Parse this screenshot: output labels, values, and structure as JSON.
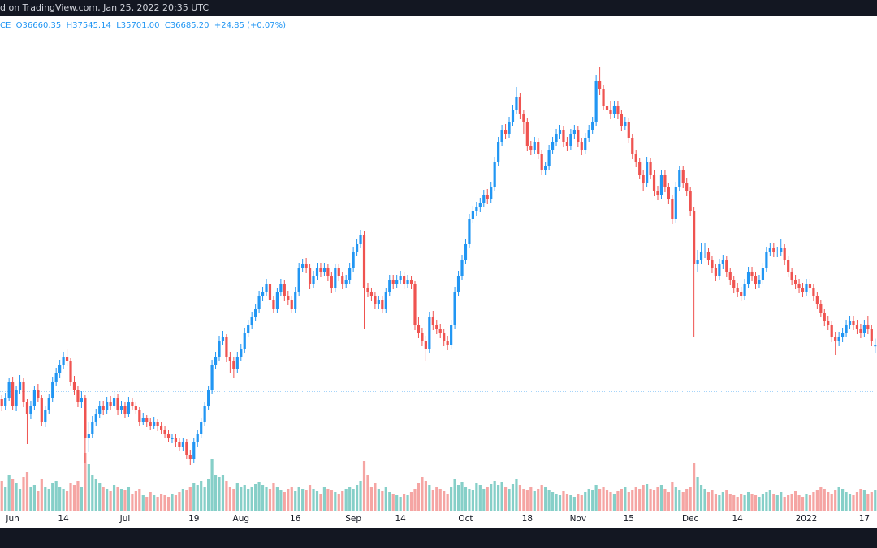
{
  "header": {
    "text": "d on TradingView.com, Jan 25, 2022 20:35 UTC"
  },
  "chart_data": {
    "type": "candlestick",
    "legend": "CE  O36660.35  H37545.14  L35701.00  C36685.20  +24.85 (+0.07%)",
    "up_color": "#2196f3",
    "down_color": "#ef5350",
    "volume_up_color": "#86cfc8",
    "volume_down_color": "#f5a5a3",
    "price_line": 31000,
    "price_line_color": "#2196f3",
    "ylim": [
      14200,
      77200
    ],
    "volume_lim": [
      0,
      100
    ],
    "categories": [
      null,
      null,
      null,
      "Jun",
      null,
      null,
      null,
      null,
      null,
      null,
      null,
      null,
      null,
      null,
      null,
      null,
      null,
      "14",
      null,
      null,
      null,
      null,
      null,
      null,
      null,
      null,
      null,
      null,
      null,
      null,
      null,
      null,
      null,
      null,
      "Jul",
      null,
      null,
      null,
      null,
      null,
      null,
      null,
      null,
      null,
      null,
      null,
      null,
      null,
      null,
      null,
      null,
      null,
      null,
      "19",
      null,
      null,
      null,
      null,
      null,
      null,
      null,
      null,
      null,
      null,
      null,
      null,
      "Aug",
      null,
      null,
      null,
      null,
      null,
      null,
      null,
      null,
      null,
      null,
      null,
      null,
      null,
      null,
      "16",
      null,
      null,
      null,
      null,
      null,
      null,
      null,
      null,
      null,
      null,
      null,
      null,
      null,
      null,
      null,
      "Sep",
      null,
      null,
      null,
      null,
      null,
      null,
      null,
      null,
      null,
      null,
      null,
      null,
      "14",
      null,
      null,
      null,
      null,
      null,
      null,
      null,
      null,
      null,
      null,
      null,
      null,
      null,
      null,
      null,
      null,
      null,
      "Oct",
      null,
      null,
      null,
      null,
      null,
      null,
      null,
      null,
      null,
      null,
      null,
      null,
      null,
      null,
      null,
      null,
      "18",
      null,
      null,
      null,
      null,
      null,
      null,
      null,
      null,
      null,
      null,
      null,
      null,
      null,
      "Nov",
      null,
      null,
      null,
      null,
      null,
      null,
      null,
      null,
      null,
      null,
      null,
      null,
      null,
      "15",
      null,
      null,
      null,
      null,
      null,
      null,
      null,
      null,
      null,
      null,
      null,
      null,
      null,
      null,
      null,
      null,
      "Dec",
      null,
      null,
      null,
      null,
      null,
      null,
      null,
      null,
      null,
      null,
      null,
      null,
      "14",
      null,
      null,
      null,
      null,
      null,
      null,
      null,
      null,
      null,
      null,
      null,
      null,
      null,
      null,
      null,
      null,
      null,
      null,
      "2022",
      null,
      null,
      null,
      null,
      null,
      null,
      null,
      null,
      null,
      null,
      null,
      null,
      null,
      null,
      null,
      "17",
      null,
      null,
      null
    ],
    "open": [
      30000,
      29200,
      30200,
      32200,
      29200,
      31200,
      32200,
      29700,
      28200,
      29200,
      31200,
      30200,
      27200,
      28700,
      30200,
      32200,
      33200,
      34200,
      35200,
      34700,
      32200,
      31200,
      29700,
      30200,
      25200,
      25700,
      27200,
      28200,
      29200,
      28700,
      29700,
      29200,
      30200,
      28700,
      29200,
      28200,
      29700,
      29200,
      28700,
      27200,
      27700,
      27200,
      26700,
      27200,
      26700,
      26200,
      25700,
      25200,
      25200,
      24700,
      24200,
      24700,
      23200,
      22700,
      24700,
      25700,
      27200,
      29200,
      31200,
      34200,
      35200,
      37200,
      37700,
      35200,
      34700,
      33700,
      35200,
      36200,
      38200,
      39200,
      40200,
      41200,
      42700,
      43200,
      44200,
      42200,
      41200,
      43200,
      44200,
      42700,
      42200,
      41200,
      43200,
      46200,
      46700,
      46200,
      44200,
      45200,
      46200,
      45700,
      46200,
      45200,
      43700,
      46200,
      45200,
      44200,
      44700,
      46200,
      48200,
      49200,
      50200,
      43700,
      43200,
      42700,
      41700,
      42200,
      41200,
      43200,
      44700,
      44200,
      44700,
      45200,
      44200,
      44700,
      44200,
      39200,
      38200,
      37200,
      36200,
      40200,
      39200,
      38700,
      38200,
      37200,
      36700,
      39200,
      43200,
      45200,
      47200,
      49200,
      52200,
      53200,
      53700,
      54200,
      55200,
      54700,
      56200,
      59200,
      61700,
      63200,
      62700,
      64200,
      65700,
      67200,
      65200,
      64200,
      61200,
      60700,
      61700,
      60200,
      58200,
      58700,
      60700,
      61700,
      62700,
      63200,
      61700,
      61200,
      62700,
      63200,
      61700,
      60700,
      62200,
      63200,
      64200,
      69200,
      68200,
      66200,
      65700,
      65200,
      66200,
      65200,
      63700,
      64200,
      62200,
      60200,
      59200,
      57700,
      56700,
      59200,
      57700,
      55700,
      55200,
      57700,
      56200,
      54700,
      52200,
      56200,
      58200,
      56700,
      55700,
      53200,
      46700,
      47200,
      48200,
      48200,
      47200,
      46200,
      45200,
      46700,
      47200,
      45700,
      44700,
      43700,
      43200,
      42700,
      44200,
      45700,
      45200,
      44200,
      44700,
      46200,
      48200,
      48700,
      48200,
      48200,
      48700,
      47200,
      45700,
      44700,
      44200,
      43700,
      43200,
      44200,
      43700,
      42700,
      41700,
      40700,
      39700,
      39200,
      37700,
      37200,
      37700,
      38200,
      39200,
      39700,
      39200,
      38700,
      38200,
      39200,
      38700,
      36660.35
    ],
    "high": [
      30600,
      30800,
      32700,
      32800,
      31700,
      33000,
      32600,
      30100,
      29800,
      31700,
      31900,
      30600,
      29200,
      30700,
      32800,
      33900,
      34800,
      35900,
      36200,
      35100,
      32900,
      31600,
      31000,
      30600,
      27200,
      27900,
      28800,
      29800,
      29800,
      30300,
      30400,
      30900,
      30700,
      29800,
      29700,
      30300,
      30200,
      29700,
      29100,
      28300,
      28100,
      27700,
      27800,
      27600,
      27200,
      26700,
      26200,
      25800,
      25700,
      25300,
      25200,
      25100,
      23800,
      25200,
      26200,
      27700,
      29700,
      31700,
      34800,
      35800,
      37800,
      38400,
      38100,
      35800,
      35200,
      35800,
      36800,
      38800,
      39800,
      40800,
      41800,
      43300,
      43800,
      44800,
      44700,
      42700,
      43700,
      44800,
      44700,
      43300,
      42700,
      43800,
      46800,
      47300,
      47400,
      46700,
      45800,
      46800,
      46800,
      46800,
      46700,
      45700,
      46700,
      46700,
      45700,
      45300,
      46800,
      48800,
      49800,
      50900,
      50700,
      44300,
      43700,
      43200,
      42800,
      42700,
      43700,
      45300,
      45300,
      45300,
      45800,
      45700,
      45300,
      45200,
      44600,
      40200,
      38800,
      37800,
      40800,
      40900,
      39800,
      39300,
      38700,
      37800,
      39800,
      43800,
      45800,
      47800,
      49800,
      52800,
      53800,
      54300,
      54800,
      55800,
      55900,
      56800,
      59800,
      62300,
      63800,
      63900,
      64800,
      66300,
      68500,
      67700,
      65700,
      64700,
      61800,
      62300,
      62200,
      60700,
      59300,
      61300,
      62300,
      63300,
      63800,
      63700,
      62300,
      63300,
      63800,
      63700,
      62200,
      62800,
      63800,
      64800,
      70000,
      71000,
      68700,
      67300,
      66700,
      66800,
      66700,
      65700,
      64800,
      64700,
      62700,
      60700,
      59700,
      58200,
      59800,
      59700,
      58200,
      56300,
      58300,
      58200,
      56700,
      55200,
      56800,
      58800,
      58700,
      57300,
      56200,
      53700,
      48400,
      49300,
      49300,
      48700,
      47700,
      46700,
      47300,
      47800,
      47700,
      46200,
      45200,
      44300,
      43800,
      44800,
      46300,
      46300,
      45700,
      45300,
      46800,
      48800,
      49300,
      49300,
      48800,
      49800,
      49200,
      47700,
      46200,
      45300,
      44800,
      44300,
      44800,
      44800,
      44200,
      43200,
      42200,
      41200,
      40300,
      39700,
      38300,
      38300,
      38800,
      39800,
      40300,
      40300,
      39800,
      39300,
      39800,
      40300,
      39200,
      37545.14
    ],
    "low": [
      28600,
      28700,
      29800,
      28700,
      28600,
      30700,
      29100,
      24500,
      27600,
      28700,
      29700,
      26700,
      26600,
      28200,
      29700,
      31700,
      32700,
      33700,
      34100,
      31700,
      30600,
      29100,
      29000,
      22200,
      23500,
      25200,
      26700,
      27700,
      28100,
      28200,
      28700,
      28800,
      28100,
      28200,
      27700,
      27800,
      28700,
      28200,
      26700,
      26800,
      26600,
      26200,
      26300,
      26100,
      25700,
      25200,
      24700,
      24600,
      24200,
      23700,
      23700,
      22700,
      21900,
      22200,
      24200,
      25200,
      26700,
      28700,
      30700,
      33700,
      34700,
      36700,
      34600,
      33200,
      32700,
      33200,
      34700,
      35700,
      37700,
      38700,
      39700,
      40700,
      42100,
      42700,
      41600,
      40600,
      40700,
      42700,
      42100,
      41600,
      40600,
      40700,
      42700,
      45700,
      45600,
      43600,
      43700,
      44700,
      45100,
      45200,
      44600,
      43100,
      43200,
      44600,
      43600,
      43700,
      44200,
      45700,
      47700,
      48700,
      38700,
      42600,
      42100,
      41100,
      41200,
      40600,
      40700,
      42700,
      43600,
      43700,
      44200,
      43600,
      43700,
      43600,
      38600,
      37600,
      36600,
      34700,
      35700,
      38600,
      38100,
      37600,
      36600,
      36100,
      36200,
      38700,
      42700,
      44700,
      46700,
      48700,
      51700,
      52600,
      53100,
      53700,
      54100,
      54200,
      55700,
      58700,
      61200,
      62100,
      62200,
      63700,
      65200,
      64600,
      62700,
      60600,
      60100,
      60200,
      59600,
      57600,
      57700,
      58200,
      60200,
      61200,
      62100,
      61100,
      60600,
      60700,
      62100,
      61100,
      60100,
      60200,
      61700,
      62700,
      63700,
      67500,
      65600,
      65100,
      64600,
      64700,
      64600,
      63100,
      63200,
      61600,
      59600,
      58600,
      57100,
      55700,
      56200,
      57100,
      55100,
      54600,
      54700,
      55600,
      54100,
      51600,
      51700,
      55700,
      56100,
      55100,
      52600,
      37700,
      45700,
      46700,
      47400,
      46600,
      45600,
      44600,
      44700,
      46100,
      45100,
      44100,
      43100,
      42600,
      42100,
      42200,
      43700,
      44600,
      43600,
      43700,
      44200,
      45700,
      47700,
      47600,
      47600,
      47700,
      46600,
      45100,
      44100,
      43600,
      43100,
      42600,
      42700,
      43100,
      42100,
      41100,
      40100,
      39100,
      38600,
      37100,
      35500,
      36600,
      37100,
      37700,
      38700,
      38600,
      38100,
      37600,
      37700,
      38100,
      36600,
      35701
    ],
    "close": [
      29200,
      30200,
      32200,
      29200,
      31200,
      32200,
      29700,
      28200,
      29200,
      31200,
      30200,
      27200,
      28700,
      30200,
      32200,
      33200,
      34200,
      35200,
      34700,
      32200,
      31200,
      29700,
      30200,
      25200,
      25700,
      27200,
      28200,
      29200,
      28700,
      29700,
      29200,
      30200,
      28700,
      29200,
      28200,
      29700,
      29200,
      28700,
      27200,
      27700,
      27200,
      26700,
      27200,
      26700,
      26200,
      25700,
      25200,
      25200,
      24700,
      24200,
      24700,
      23200,
      22700,
      24700,
      25700,
      27200,
      29200,
      31200,
      34200,
      35200,
      37200,
      37700,
      35200,
      34700,
      33700,
      35200,
      36200,
      38200,
      39200,
      40200,
      41200,
      42700,
      43200,
      44200,
      42200,
      41200,
      43200,
      44200,
      42700,
      42200,
      41200,
      43200,
      46200,
      46700,
      46200,
      44200,
      45200,
      46200,
      45700,
      46200,
      45200,
      43700,
      46200,
      45200,
      44200,
      44700,
      46200,
      48200,
      49200,
      50200,
      43700,
      43200,
      42700,
      41700,
      42200,
      41200,
      43200,
      44700,
      44200,
      44700,
      45200,
      44200,
      44700,
      44200,
      39200,
      38200,
      37200,
      36200,
      40200,
      39200,
      38700,
      38200,
      37200,
      36700,
      39200,
      43200,
      45200,
      47200,
      49200,
      52200,
      53200,
      53700,
      54200,
      55200,
      54700,
      56200,
      59200,
      61700,
      63200,
      62700,
      64200,
      65700,
      67200,
      65200,
      64200,
      61200,
      60700,
      61700,
      60200,
      58200,
      58700,
      60700,
      61700,
      62700,
      63200,
      61700,
      61200,
      62700,
      63200,
      61700,
      60700,
      62200,
      63200,
      64200,
      69200,
      68200,
      66200,
      65700,
      65200,
      66200,
      65200,
      63700,
      64200,
      62200,
      60200,
      59200,
      57700,
      56700,
      59200,
      57700,
      55700,
      55200,
      57700,
      56200,
      54700,
      52200,
      56200,
      58200,
      56700,
      55700,
      53200,
      46700,
      47200,
      48200,
      48200,
      47200,
      46200,
      45200,
      46700,
      47200,
      45700,
      44700,
      43700,
      43200,
      42700,
      44200,
      45700,
      45200,
      44200,
      44700,
      46200,
      48200,
      48700,
      48200,
      48200,
      48700,
      47200,
      45700,
      44700,
      44200,
      43700,
      43200,
      44200,
      43700,
      42700,
      41700,
      40700,
      39700,
      39200,
      37700,
      37200,
      37700,
      38200,
      39200,
      39700,
      39200,
      38700,
      38200,
      39200,
      38700,
      37200,
      36685.2
    ],
    "volume": [
      38,
      30,
      45,
      40,
      35,
      28,
      42,
      48,
      30,
      32,
      25,
      40,
      30,
      28,
      35,
      38,
      30,
      28,
      25,
      35,
      32,
      38,
      30,
      72,
      58,
      45,
      40,
      35,
      30,
      28,
      25,
      32,
      30,
      28,
      26,
      30,
      22,
      25,
      28,
      20,
      18,
      24,
      20,
      18,
      22,
      20,
      18,
      22,
      20,
      24,
      28,
      26,
      30,
      35,
      32,
      38,
      30,
      40,
      65,
      45,
      42,
      45,
      38,
      30,
      28,
      35,
      30,
      32,
      28,
      30,
      34,
      36,
      32,
      30,
      28,
      35,
      30,
      26,
      24,
      28,
      30,
      25,
      30,
      28,
      26,
      32,
      28,
      25,
      22,
      30,
      28,
      26,
      24,
      22,
      25,
      28,
      30,
      28,
      32,
      38,
      62,
      45,
      30,
      35,
      28,
      25,
      30,
      24,
      22,
      20,
      18,
      22,
      20,
      24,
      28,
      35,
      42,
      38,
      32,
      26,
      30,
      28,
      25,
      22,
      30,
      40,
      32,
      36,
      30,
      28,
      26,
      35,
      32,
      28,
      30,
      34,
      38,
      32,
      36,
      30,
      28,
      34,
      40,
      32,
      28,
      26,
      30,
      25,
      28,
      32,
      30,
      26,
      24,
      22,
      20,
      25,
      22,
      20,
      18,
      22,
      20,
      24,
      28,
      26,
      32,
      28,
      30,
      26,
      24,
      22,
      25,
      28,
      30,
      24,
      26,
      30,
      28,
      32,
      34,
      28,
      26,
      30,
      32,
      28,
      24,
      36,
      30,
      26,
      24,
      28,
      30,
      60,
      42,
      32,
      28,
      24,
      26,
      22,
      20,
      24,
      26,
      22,
      20,
      18,
      22,
      20,
      24,
      22,
      20,
      18,
      22,
      24,
      26,
      22,
      20,
      24,
      18,
      20,
      22,
      25,
      20,
      18,
      22,
      20,
      24,
      26,
      30,
      28,
      24,
      22,
      26,
      30,
      28,
      24,
      22,
      20,
      24,
      28,
      26,
      22,
      24,
      26
    ]
  }
}
